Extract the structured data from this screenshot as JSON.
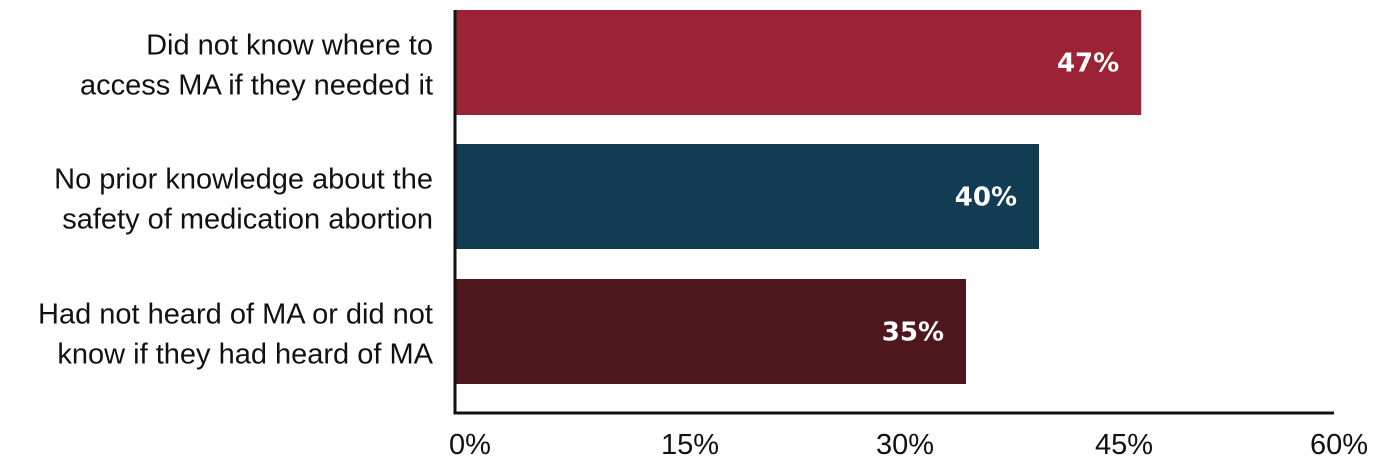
{
  "chart_data": {
    "type": "bar",
    "orientation": "horizontal",
    "categories": [
      [
        "Did not know where to",
        "access MA if they needed it"
      ],
      [
        "No prior knowledge about the",
        "safety of medication abortion"
      ],
      [
        "Had not heard of MA or did not",
        "know if they had heard of MA"
      ]
    ],
    "values": [
      47,
      40,
      35
    ],
    "value_labels": [
      "47%",
      "40%",
      "35%"
    ],
    "bar_colors": [
      "#9b2335",
      "#123c52",
      "#4e161d"
    ],
    "xlim": [
      0,
      60
    ],
    "xticks": [
      0,
      15,
      30,
      45,
      60
    ],
    "xtick_labels": [
      "0%",
      "15%",
      "30%",
      "45%",
      "60%"
    ],
    "title": "",
    "xlabel": "",
    "ylabel": "",
    "grid": false,
    "legend": "none"
  }
}
